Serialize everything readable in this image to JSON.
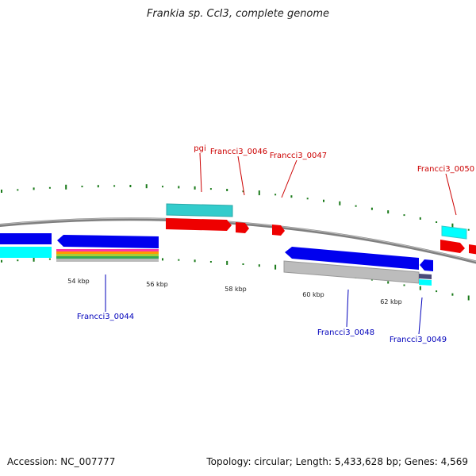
{
  "title": "Frankia sp. CcI3, complete genome",
  "footer": {
    "accession": "Accession: NC_007777",
    "summary": "Topology: circular; Length: 5,433,628 bp; Genes: 4,569"
  },
  "colors": {
    "forward_label": "#cc0000",
    "reverse_label": "#0000bb",
    "backbone": "#808080",
    "gc_tick": "#1a7a1a",
    "cds_forward": "#ee0000",
    "cds_reverse": "#0000ee",
    "feature_cyan": "#33cccc",
    "feature_grey": "#b8b8b8"
  },
  "scale_labels": [
    "54 kbp",
    "56 kbp",
    "58 kbp",
    "60 kbp",
    "62 kbp"
  ],
  "forward_genes": [
    "pgi",
    "Francci3_0046",
    "Francci3_0047",
    "Francci3_0050"
  ],
  "reverse_genes": [
    "Francci3_0044",
    "Francci3_0048",
    "Francci3_0049"
  ]
}
